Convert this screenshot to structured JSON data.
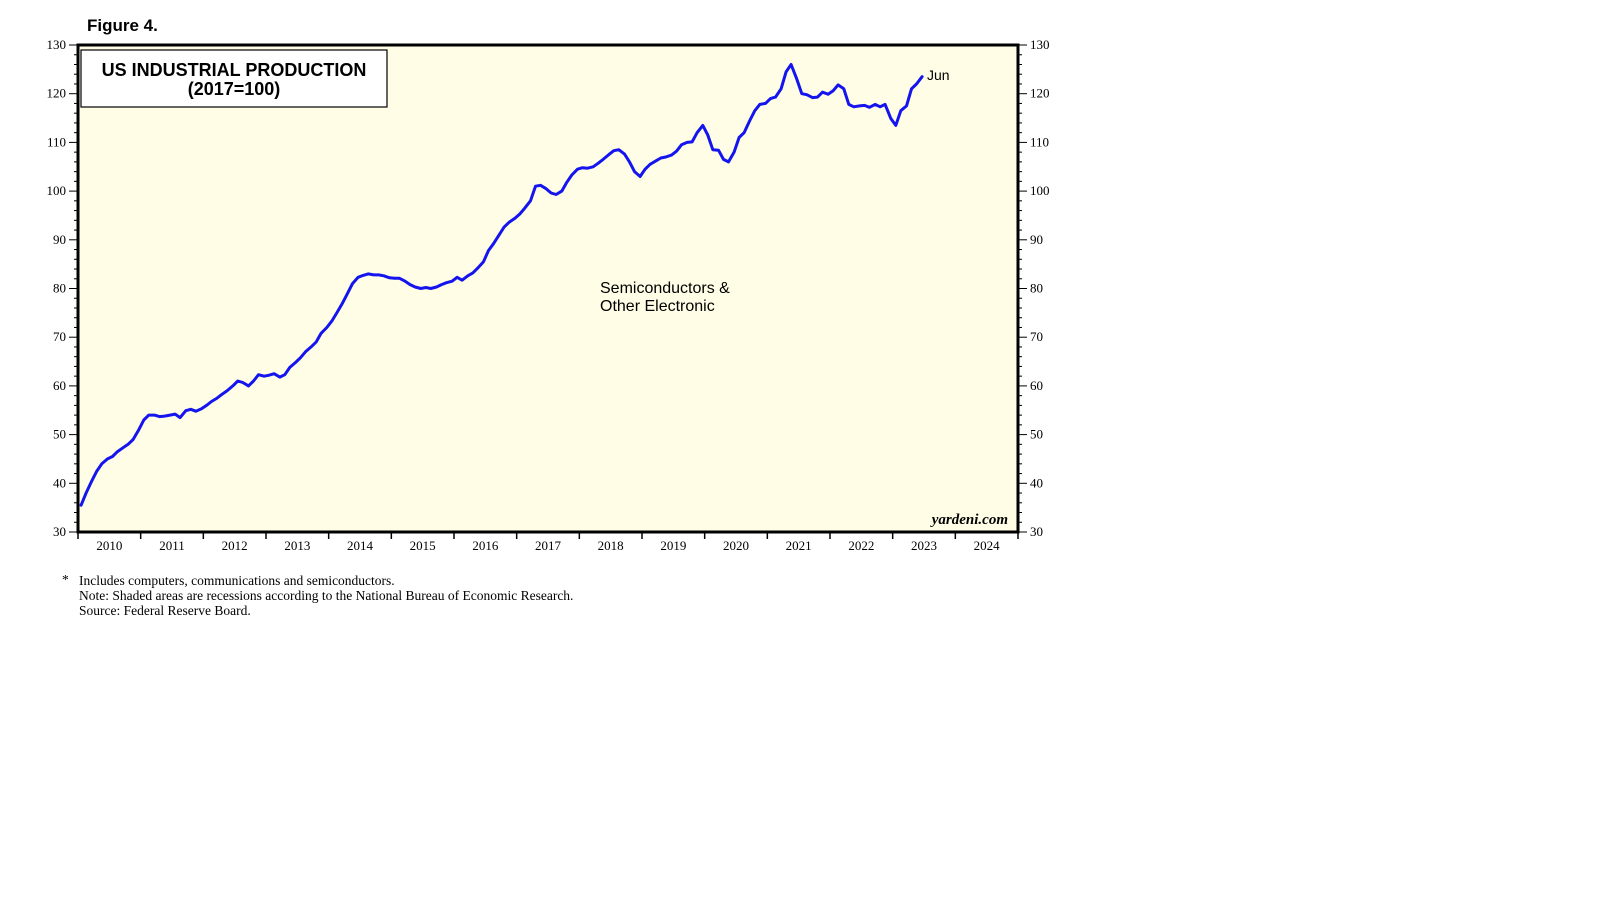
{
  "figure_label": "Figure 4.",
  "footnotes": {
    "marker": "*",
    "lines": [
      "Includes computers, communications and semiconductors.",
      "Note: Shaded areas are recessions according to the National Bureau of Economic Research.",
      "Source: Federal Reserve Board."
    ]
  },
  "watermark": "yardeni.com",
  "chart_data": {
    "type": "line",
    "title": "US INDUSTRIAL PRODUCTION",
    "subtitle": "(2017=100)",
    "xlabel": "",
    "ylabel": "",
    "xlim": [
      2009.95,
      2024.95
    ],
    "ylim": [
      30,
      130
    ],
    "ytick_values": [
      30,
      40,
      50,
      60,
      70,
      80,
      90,
      100,
      110,
      120,
      130
    ],
    "ytick_labels": [
      "30",
      "40",
      "50",
      "60",
      "70",
      "80",
      "90",
      "100",
      "110",
      "120",
      "130"
    ],
    "xtick_years": [
      2010,
      2011,
      2012,
      2013,
      2014,
      2015,
      2016,
      2017,
      2018,
      2019,
      2020,
      2021,
      2022,
      2023,
      2024
    ],
    "xtick_labels": [
      "2010",
      "2011",
      "2012",
      "2013",
      "2014",
      "2015",
      "2016",
      "2017",
      "2018",
      "2019",
      "2020",
      "2021",
      "2022",
      "2023",
      "2024"
    ],
    "grid": false,
    "background_color": "#fffde6",
    "line_color": "#1414ee",
    "series_label": [
      "Semiconductors &",
      "Other Electronic"
    ],
    "end_label": "Jun",
    "series": [
      {
        "name": "Semiconductors & Other Electronic",
        "x": [
          2010.0,
          2010.08,
          2010.17,
          2010.25,
          2010.33,
          2010.42,
          2010.5,
          2010.58,
          2010.67,
          2010.75,
          2010.83,
          2010.92,
          2011.0,
          2011.08,
          2011.17,
          2011.25,
          2011.33,
          2011.42,
          2011.5,
          2011.58,
          2011.67,
          2011.75,
          2011.83,
          2011.92,
          2012.0,
          2012.08,
          2012.17,
          2012.25,
          2012.33,
          2012.42,
          2012.5,
          2012.58,
          2012.67,
          2012.75,
          2012.83,
          2012.92,
          2013.0,
          2013.08,
          2013.17,
          2013.25,
          2013.33,
          2013.42,
          2013.5,
          2013.58,
          2013.67,
          2013.75,
          2013.83,
          2013.92,
          2014.0,
          2014.08,
          2014.17,
          2014.25,
          2014.33,
          2014.42,
          2014.5,
          2014.58,
          2014.67,
          2014.75,
          2014.83,
          2014.92,
          2015.0,
          2015.08,
          2015.17,
          2015.25,
          2015.33,
          2015.42,
          2015.5,
          2015.58,
          2015.67,
          2015.75,
          2015.83,
          2015.92,
          2016.0,
          2016.08,
          2016.17,
          2016.25,
          2016.33,
          2016.42,
          2016.5,
          2016.58,
          2016.67,
          2016.75,
          2016.83,
          2016.92,
          2017.0,
          2017.08,
          2017.17,
          2017.25,
          2017.33,
          2017.42,
          2017.5,
          2017.58,
          2017.67,
          2017.75,
          2017.83,
          2017.92,
          2018.0,
          2018.08,
          2018.17,
          2018.25,
          2018.33,
          2018.42,
          2018.5,
          2018.58,
          2018.67,
          2018.75,
          2018.83,
          2018.92,
          2019.0,
          2019.08,
          2019.17,
          2019.25,
          2019.33,
          2019.42,
          2019.5,
          2019.58,
          2019.67,
          2019.75,
          2019.83,
          2019.92,
          2020.0,
          2020.08,
          2020.17,
          2020.25,
          2020.33,
          2020.42,
          2020.5,
          2020.58,
          2020.67,
          2020.75,
          2020.83,
          2020.92,
          2021.0,
          2021.08,
          2021.17,
          2021.25,
          2021.33,
          2021.42,
          2021.5,
          2021.58,
          2021.67,
          2021.75,
          2021.83,
          2021.92,
          2022.0,
          2022.08,
          2022.17,
          2022.25,
          2022.33,
          2022.42,
          2022.5,
          2022.58,
          2022.67,
          2022.75,
          2022.83,
          2022.92,
          2023.0,
          2023.08,
          2023.17,
          2023.25,
          2023.33,
          2023.42
        ],
        "values": [
          35.5,
          38.0,
          40.5,
          42.5,
          44.0,
          45.0,
          45.5,
          46.5,
          47.3,
          48.0,
          49.0,
          51.0,
          53.0,
          54.0,
          54.0,
          53.7,
          53.8,
          54.0,
          54.2,
          53.5,
          54.9,
          55.2,
          54.8,
          55.3,
          56.0,
          56.8,
          57.5,
          58.3,
          59.0,
          60.0,
          61.0,
          60.7,
          60.0,
          61.0,
          62.3,
          62.0,
          62.2,
          62.5,
          61.8,
          62.3,
          63.8,
          64.8,
          65.8,
          67.0,
          68.0,
          69.0,
          70.8,
          72.0,
          73.3,
          75.0,
          77.0,
          79.0,
          81.0,
          82.3,
          82.7,
          83.0,
          82.8,
          82.8,
          82.6,
          82.2,
          82.1,
          82.1,
          81.5,
          80.8,
          80.3,
          80.0,
          80.2,
          80.0,
          80.3,
          80.8,
          81.2,
          81.5,
          82.3,
          81.7,
          82.6,
          83.2,
          84.2,
          85.5,
          87.8,
          89.2,
          91.0,
          92.6,
          93.6,
          94.4,
          95.3,
          96.5,
          98.0,
          101.0,
          101.2,
          100.5,
          99.6,
          99.3,
          100.0,
          101.8,
          103.3,
          104.5,
          104.8,
          104.7,
          105.0,
          105.7,
          106.5,
          107.5,
          108.3,
          108.5,
          107.6,
          106.0,
          104.0,
          103.0,
          104.5,
          105.5,
          106.2,
          106.8,
          107.0,
          107.4,
          108.2,
          109.5,
          110.0,
          110.1,
          112.0,
          113.5,
          111.5,
          108.5,
          108.4,
          106.5,
          106.0,
          108.0,
          111.0,
          112.0,
          114.5,
          116.5,
          117.8,
          118.0,
          119.0,
          119.3,
          121.0,
          124.5,
          126.0,
          123.0,
          120.0,
          119.8,
          119.2,
          119.3,
          120.3,
          119.9,
          120.6,
          121.8,
          121.0,
          117.8,
          117.3,
          117.5,
          117.6,
          117.2,
          117.8,
          117.3,
          117.8,
          114.9,
          113.5,
          116.5,
          117.5,
          121.0,
          122.0,
          123.5
        ]
      }
    ]
  }
}
